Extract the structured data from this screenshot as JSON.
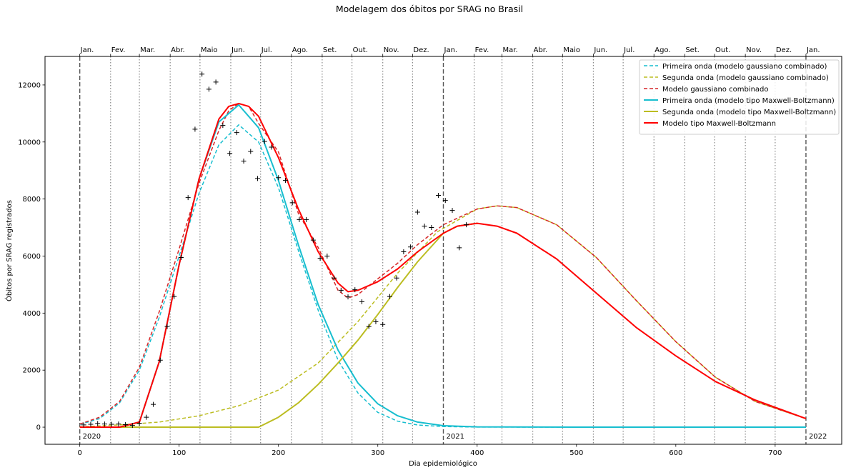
{
  "chart_data": {
    "type": "line",
    "title": "Modelagem dos óbitos por SRAG no Brasil",
    "xlabel": "Dia epidemiológico",
    "ylabel": "Óbitos por SRAG registrados",
    "xlim": [
      -35,
      767
    ],
    "ylim": [
      -600,
      13000
    ],
    "x_ticks": [
      0,
      100,
      200,
      300,
      400,
      500,
      600,
      700
    ],
    "y_ticks": [
      0,
      2000,
      4000,
      6000,
      8000,
      10000,
      12000
    ],
    "grid": false,
    "legend_position": "top-right",
    "year_markers": [
      {
        "x": 0,
        "label": "2020"
      },
      {
        "x": 366,
        "label": "2021"
      },
      {
        "x": 731,
        "label": "2022"
      }
    ],
    "month_ticks": [
      {
        "x": 0,
        "label": "Jan."
      },
      {
        "x": 31,
        "label": "Fev."
      },
      {
        "x": 60,
        "label": "Mar."
      },
      {
        "x": 91,
        "label": "Abr."
      },
      {
        "x": 121,
        "label": "Maio"
      },
      {
        "x": 152,
        "label": "Jun."
      },
      {
        "x": 182,
        "label": "Jul."
      },
      {
        "x": 213,
        "label": "Ago."
      },
      {
        "x": 244,
        "label": "Set."
      },
      {
        "x": 274,
        "label": "Out."
      },
      {
        "x": 305,
        "label": "Nov."
      },
      {
        "x": 335,
        "label": "Dez."
      },
      {
        "x": 366,
        "label": "Jan."
      },
      {
        "x": 397,
        "label": "Fev."
      },
      {
        "x": 425,
        "label": "Mar."
      },
      {
        "x": 456,
        "label": "Abr."
      },
      {
        "x": 486,
        "label": "Maio"
      },
      {
        "x": 517,
        "label": "Jun."
      },
      {
        "x": 547,
        "label": "Jul."
      },
      {
        "x": 578,
        "label": "Ago."
      },
      {
        "x": 609,
        "label": "Set."
      },
      {
        "x": 639,
        "label": "Out."
      },
      {
        "x": 670,
        "label": "Nov."
      },
      {
        "x": 700,
        "label": "Dez."
      },
      {
        "x": 731,
        "label": "Jan."
      }
    ],
    "observed": {
      "marker": "+",
      "color": "#000000",
      "x": [
        4,
        11,
        18,
        25,
        32,
        39,
        46,
        53,
        60,
        67,
        74,
        81,
        88,
        95,
        102,
        109,
        116,
        123,
        130,
        137,
        144,
        151,
        158,
        165,
        172,
        179,
        186,
        193,
        200,
        207,
        214,
        221,
        228,
        235,
        242,
        249,
        256,
        263,
        270,
        277,
        284,
        291,
        298,
        305,
        312,
        319,
        326,
        333,
        340,
        347,
        354,
        361,
        368,
        375,
        382,
        389
      ],
      "y": [
        80,
        100,
        130,
        110,
        100,
        110,
        90,
        60,
        140,
        350,
        800,
        2350,
        3530,
        4580,
        5950,
        8050,
        10450,
        12380,
        11850,
        12100,
        10580,
        9600,
        10330,
        9330,
        9670,
        8720,
        10020,
        9820,
        8750,
        8650,
        7870,
        7280,
        7280,
        6560,
        5920,
        6000,
        5230,
        4800,
        4570,
        4820,
        4400,
        3530,
        3700,
        3600,
        4580,
        5230,
        6150,
        6320,
        7540,
        7050,
        7000,
        8130,
        7950,
        7600,
        6290,
        7100
      ]
    },
    "series": [
      {
        "name": "Primeira onda (modelo gaussiano combinado)",
        "color": "#17becf",
        "dash": "dashed",
        "width": 1.5,
        "x": [
          0,
          20,
          40,
          60,
          80,
          100,
          120,
          140,
          160,
          180,
          200,
          220,
          240,
          260,
          280,
          300,
          320,
          340,
          366,
          400,
          500,
          600,
          700,
          731
        ],
        "y": [
          100,
          300,
          850,
          2000,
          3850,
          6000,
          8200,
          9900,
          10600,
          10000,
          8400,
          6200,
          4100,
          2350,
          1200,
          520,
          210,
          75,
          20,
          3,
          0,
          0,
          0,
          0
        ]
      },
      {
        "name": "Segunda onda (modelo gaussiano combinado)",
        "color": "#bcbd22",
        "dash": "dashed",
        "width": 1.5,
        "x": [
          0,
          40,
          80,
          120,
          160,
          200,
          240,
          280,
          320,
          360,
          400,
          420,
          440,
          480,
          520,
          560,
          600,
          640,
          680,
          731
        ],
        "y": [
          10,
          80,
          180,
          400,
          750,
          1300,
          2250,
          3700,
          5400,
          6850,
          7650,
          7760,
          7700,
          7100,
          5950,
          4450,
          3000,
          1750,
          900,
          300
        ]
      },
      {
        "name": "Modelo gaussiano combinado",
        "color": "#d62728",
        "dash": "dashed",
        "width": 1.5,
        "x": [
          0,
          20,
          40,
          60,
          80,
          100,
          120,
          140,
          150,
          160,
          170,
          180,
          200,
          220,
          240,
          260,
          270,
          280,
          300,
          320,
          340,
          366,
          400,
          420,
          440,
          480,
          520,
          560,
          600,
          640,
          680,
          731
        ],
        "y": [
          110,
          350,
          900,
          2100,
          4050,
          6250,
          8550,
          10400,
          11100,
          11350,
          11250,
          10650,
          9650,
          7500,
          6300,
          4800,
          4530,
          4650,
          5200,
          5750,
          6400,
          7100,
          7650,
          7760,
          7700,
          7100,
          5950,
          4450,
          3000,
          1750,
          900,
          300
        ]
      },
      {
        "name": "Primeira onda (modelo tipo Maxwell-Boltzmann)",
        "color": "#17becf",
        "dash": "solid",
        "width": 2,
        "x": [
          0,
          40,
          60,
          80,
          100,
          120,
          140,
          160,
          180,
          200,
          220,
          240,
          260,
          280,
          300,
          320,
          340,
          366,
          400,
          500,
          600,
          731
        ],
        "y": [
          0,
          0,
          180,
          2300,
          5700,
          8700,
          10700,
          11300,
          10500,
          8650,
          6400,
          4300,
          2700,
          1550,
          820,
          400,
          180,
          50,
          10,
          0,
          0,
          0
        ]
      },
      {
        "name": "Segunda onda (modelo tipo Maxwell-Boltzmann)",
        "color": "#bcbd22",
        "dash": "solid",
        "width": 2,
        "x": [
          0,
          100,
          180,
          200,
          220,
          240,
          260,
          280,
          300,
          320,
          340,
          366,
          380,
          400
        ],
        "y": [
          0,
          0,
          0,
          350,
          850,
          1500,
          2250,
          3050,
          3950,
          4900,
          5800,
          6800,
          7050,
          7150
        ]
      },
      {
        "name": "Modelo tipo Maxwell-Boltzmann",
        "color": "#ff0000",
        "dash": "solid",
        "width": 2,
        "x": [
          0,
          40,
          60,
          80,
          100,
          120,
          140,
          150,
          160,
          170,
          180,
          200,
          220,
          240,
          260,
          270,
          280,
          300,
          320,
          340,
          366,
          380,
          400,
          420,
          440,
          480,
          520,
          560,
          600,
          640,
          680,
          731
        ],
        "y": [
          0,
          0,
          180,
          2300,
          5700,
          8700,
          10800,
          11250,
          11350,
          11250,
          10900,
          9450,
          7650,
          6150,
          5050,
          4750,
          4800,
          5100,
          5550,
          6150,
          6800,
          7050,
          7150,
          7050,
          6800,
          5900,
          4700,
          3500,
          2500,
          1600,
          950,
          300
        ]
      }
    ]
  }
}
